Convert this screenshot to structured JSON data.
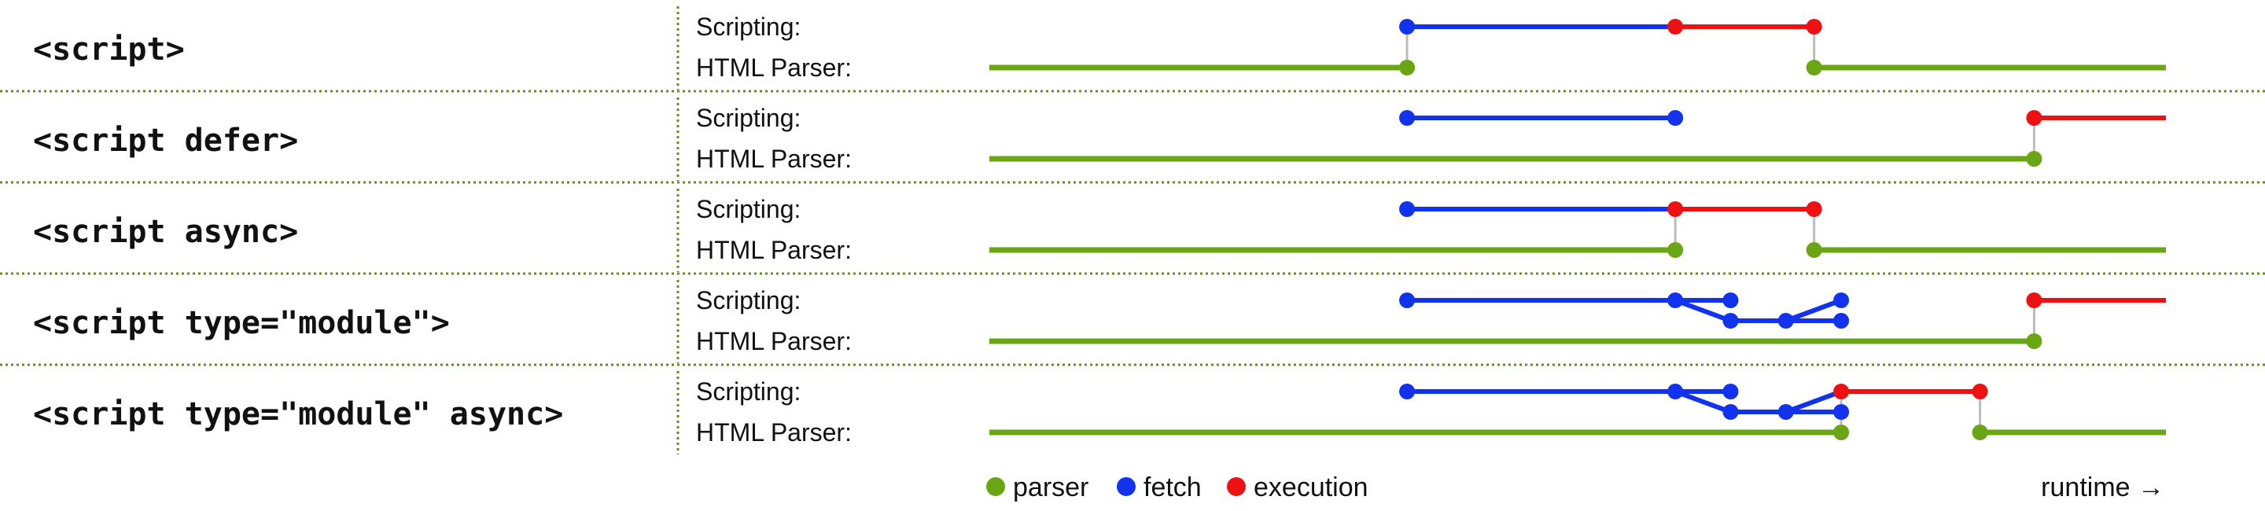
{
  "colors": {
    "parser": "#6aa514",
    "fetch": "#1133ee",
    "execution": "#ee1111",
    "connector": "#bbbbbb",
    "divider": "#6a8a2a"
  },
  "row_labels": {
    "scripting": "Scripting:",
    "parser": "HTML Parser:"
  },
  "rows": [
    {
      "label": "<script>",
      "scripting_segments": [
        {
          "kind": "fetch",
          "pts": [
            [
              0.355,
              0
            ],
            [
              0.583,
              0
            ]
          ]
        },
        {
          "kind": "execution",
          "pts": [
            [
              0.583,
              0
            ],
            [
              0.701,
              0
            ]
          ]
        }
      ],
      "parser_segments": [
        {
          "pts": [
            [
              0.0,
              0
            ],
            [
              0.355,
              0
            ]
          ],
          "end_dot": true
        },
        {
          "pts": [
            [
              0.701,
              0
            ],
            [
              1.0,
              0
            ]
          ],
          "start_dot": true
        }
      ],
      "connectors": [
        0.355,
        0.701
      ],
      "dots": [
        {
          "kind": "fetch",
          "p": [
            0.355,
            0
          ]
        },
        {
          "kind": "execution",
          "p": [
            0.583,
            0
          ]
        },
        {
          "kind": "execution",
          "p": [
            0.701,
            0
          ]
        }
      ]
    },
    {
      "label": "<script defer>",
      "scripting_segments": [
        {
          "kind": "fetch",
          "pts": [
            [
              0.355,
              0
            ],
            [
              0.583,
              0
            ]
          ]
        },
        {
          "kind": "execution",
          "pts": [
            [
              0.888,
              0
            ],
            [
              1.0,
              0
            ]
          ]
        }
      ],
      "parser_segments": [
        {
          "pts": [
            [
              0.0,
              0
            ],
            [
              0.888,
              0
            ]
          ],
          "end_dot": true
        }
      ],
      "connectors": [
        0.888
      ],
      "dots": [
        {
          "kind": "fetch",
          "p": [
            0.355,
            0
          ]
        },
        {
          "kind": "fetch",
          "p": [
            0.583,
            0
          ]
        },
        {
          "kind": "execution",
          "p": [
            0.888,
            0
          ]
        }
      ]
    },
    {
      "label": "<script async>",
      "scripting_segments": [
        {
          "kind": "fetch",
          "pts": [
            [
              0.355,
              0
            ],
            [
              0.583,
              0
            ]
          ]
        },
        {
          "kind": "execution",
          "pts": [
            [
              0.583,
              0
            ],
            [
              0.701,
              0
            ]
          ]
        }
      ],
      "parser_segments": [
        {
          "pts": [
            [
              0.0,
              0
            ],
            [
              0.583,
              0
            ]
          ],
          "end_dot": true
        },
        {
          "pts": [
            [
              0.701,
              0
            ],
            [
              1.0,
              0
            ]
          ],
          "start_dot": true
        }
      ],
      "connectors": [
        0.583,
        0.701
      ],
      "dots": [
        {
          "kind": "fetch",
          "p": [
            0.355,
            0
          ]
        },
        {
          "kind": "execution",
          "p": [
            0.583,
            0
          ]
        },
        {
          "kind": "execution",
          "p": [
            0.701,
            0
          ]
        }
      ]
    },
    {
      "label": "<script type=\"module\">",
      "scripting_segments": [
        {
          "kind": "fetch",
          "pts": [
            [
              0.355,
              0
            ],
            [
              0.583,
              0
            ],
            [
              0.63,
              0
            ]
          ]
        },
        {
          "kind": "fetch",
          "pts": [
            [
              0.583,
              0
            ],
            [
              0.63,
              0.5
            ],
            [
              0.677,
              0.5
            ],
            [
              0.724,
              0
            ]
          ]
        },
        {
          "kind": "fetch",
          "pts": [
            [
              0.677,
              0.5
            ],
            [
              0.724,
              0.5
            ]
          ]
        },
        {
          "kind": "execution",
          "pts": [
            [
              0.888,
              0
            ],
            [
              1.0,
              0
            ]
          ]
        }
      ],
      "parser_segments": [
        {
          "pts": [
            [
              0.0,
              0
            ],
            [
              0.888,
              0
            ]
          ],
          "end_dot": true
        }
      ],
      "connectors": [
        0.888
      ],
      "dots": [
        {
          "kind": "fetch",
          "p": [
            0.355,
            0
          ]
        },
        {
          "kind": "fetch",
          "p": [
            0.583,
            0
          ]
        },
        {
          "kind": "fetch",
          "p": [
            0.63,
            0
          ]
        },
        {
          "kind": "fetch",
          "p": [
            0.63,
            0.5
          ]
        },
        {
          "kind": "fetch",
          "p": [
            0.677,
            0.5
          ]
        },
        {
          "kind": "fetch",
          "p": [
            0.724,
            0.5
          ]
        },
        {
          "kind": "fetch",
          "p": [
            0.724,
            0
          ]
        },
        {
          "kind": "execution",
          "p": [
            0.888,
            0
          ]
        }
      ]
    },
    {
      "label": "<script type=\"module\" async>",
      "scripting_segments": [
        {
          "kind": "fetch",
          "pts": [
            [
              0.355,
              0
            ],
            [
              0.583,
              0
            ],
            [
              0.63,
              0
            ]
          ]
        },
        {
          "kind": "fetch",
          "pts": [
            [
              0.583,
              0
            ],
            [
              0.63,
              0.5
            ],
            [
              0.677,
              0.5
            ],
            [
              0.724,
              0
            ]
          ]
        },
        {
          "kind": "fetch",
          "pts": [
            [
              0.677,
              0.5
            ],
            [
              0.724,
              0.5
            ]
          ]
        },
        {
          "kind": "execution",
          "pts": [
            [
              0.724,
              0
            ],
            [
              0.842,
              0
            ]
          ]
        }
      ],
      "parser_segments": [
        {
          "pts": [
            [
              0.0,
              0
            ],
            [
              0.724,
              0
            ]
          ],
          "end_dot": true
        },
        {
          "pts": [
            [
              0.842,
              0
            ],
            [
              1.0,
              0
            ]
          ],
          "start_dot": true
        }
      ],
      "connectors": [
        0.724,
        0.842
      ],
      "dots": [
        {
          "kind": "fetch",
          "p": [
            0.355,
            0
          ]
        },
        {
          "kind": "fetch",
          "p": [
            0.583,
            0
          ]
        },
        {
          "kind": "fetch",
          "p": [
            0.63,
            0
          ]
        },
        {
          "kind": "fetch",
          "p": [
            0.63,
            0.5
          ]
        },
        {
          "kind": "fetch",
          "p": [
            0.677,
            0.5
          ]
        },
        {
          "kind": "fetch",
          "p": [
            0.724,
            0.5
          ]
        },
        {
          "kind": "execution",
          "p": [
            0.724,
            0
          ]
        },
        {
          "kind": "execution",
          "p": [
            0.842,
            0
          ]
        }
      ]
    }
  ],
  "legend": [
    {
      "kind": "parser",
      "label": "parser"
    },
    {
      "kind": "fetch",
      "label": "fetch"
    },
    {
      "kind": "execution",
      "label": "execution"
    }
  ],
  "runtime_label": "runtime →"
}
